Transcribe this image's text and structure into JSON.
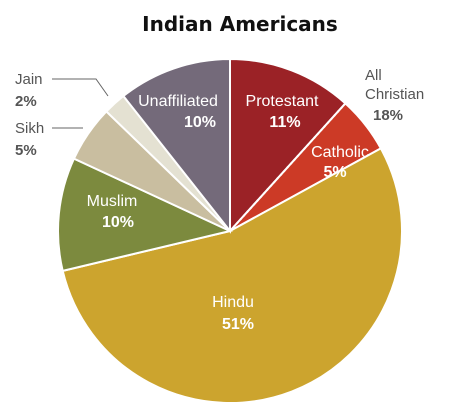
{
  "chart_data": {
    "type": "pie",
    "title": "Indian Americans",
    "slices": [
      {
        "label": "Protestant",
        "value": 11,
        "value_label": "11%",
        "color": "#9b2226"
      },
      {
        "label": "Catholic",
        "value": 5,
        "value_label": "5%",
        "color": "#cc3a26"
      },
      {
        "label": "Hindu",
        "value": 51,
        "value_label": "51%",
        "color": "#cca42e"
      },
      {
        "label": "Muslim",
        "value": 10,
        "value_label": "10%",
        "color": "#7c8a3e"
      },
      {
        "label": "Sikh",
        "value": 5,
        "value_label": "5%",
        "color": "#c9bea0"
      },
      {
        "label": "Jain",
        "value": 2,
        "value_label": "2%",
        "color": "#e4e1d2"
      },
      {
        "label": "Unaffiliated",
        "value": 10,
        "value_label": "10%",
        "color": "#746a7a"
      }
    ],
    "group": {
      "label_line1": "All",
      "label_line2": "Christian",
      "value_label": "18%",
      "members": [
        "Protestant",
        "Catholic"
      ]
    }
  }
}
